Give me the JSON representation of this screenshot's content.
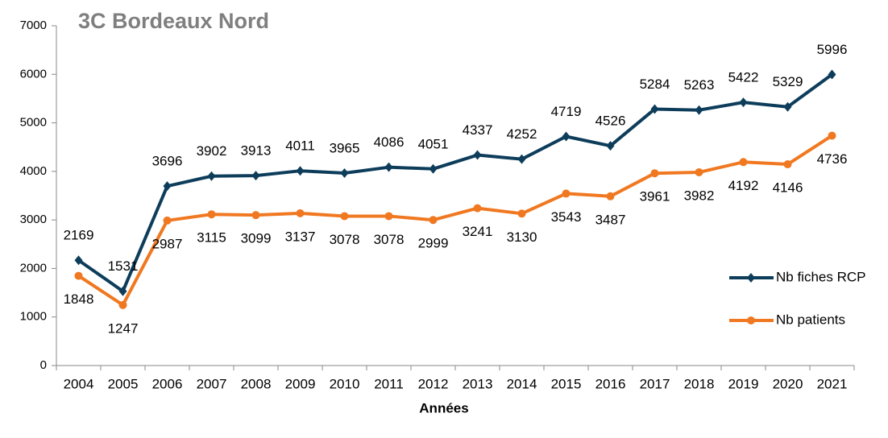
{
  "chart_data": {
    "type": "line",
    "title": "3C Bordeaux Nord",
    "x_label": "Années",
    "categories": [
      "2004",
      "2005",
      "2006",
      "2007",
      "2008",
      "2009",
      "2010",
      "2011",
      "2012",
      "2013",
      "2014",
      "2015",
      "2016",
      "2017",
      "2018",
      "2019",
      "2020",
      "2021"
    ],
    "series": [
      {
        "name": "Nb fiches RCP",
        "color": "#0d3d5a",
        "marker": "diamond",
        "values": [
          2169,
          1531,
          3696,
          3902,
          3913,
          4011,
          3965,
          4086,
          4051,
          4337,
          4252,
          4719,
          4526,
          5284,
          5263,
          5422,
          5329,
          5996
        ]
      },
      {
        "name": "Nb patients",
        "color": "#f07820",
        "marker": "circle",
        "values": [
          1848,
          1247,
          2987,
          3115,
          3099,
          3137,
          3078,
          3078,
          2999,
          3241,
          3130,
          3543,
          3487,
          3961,
          3982,
          4192,
          4146,
          4736
        ]
      }
    ],
    "ylim": [
      0,
      7000
    ],
    "yticks": [
      0,
      1000,
      2000,
      3000,
      4000,
      5000,
      6000,
      7000
    ],
    "grid": false,
    "legend": "right"
  }
}
